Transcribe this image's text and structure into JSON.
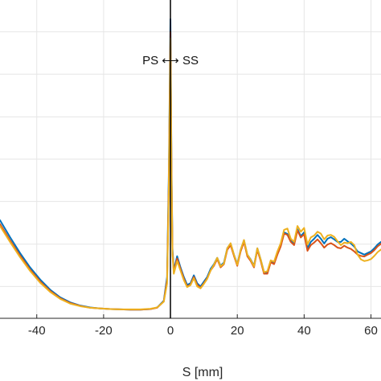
{
  "chart_data": {
    "type": "line",
    "title": "",
    "xlabel": "S [mm]",
    "ylabel": "",
    "xlim": [
      -51,
      63
    ],
    "ylim": [
      0,
      1.0
    ],
    "grid": true,
    "legend": "none",
    "x_ticks": [
      -40,
      -20,
      0,
      20,
      40,
      60
    ],
    "x_tick_labels": [
      "-40",
      "-20",
      "0",
      "20",
      "40",
      "60"
    ],
    "y_grid_values": [
      0.1,
      0.233,
      0.367,
      0.5,
      0.633,
      0.767,
      0.9
    ],
    "annotation": "PS ⟷ SS",
    "vline_x": 0,
    "colors": {
      "blue": "#0072BD",
      "red": "#D95319",
      "yellow": "#EDB120",
      "axis": "#262626",
      "grid": "#e6e6e6",
      "vline": "#000000"
    },
    "series": [
      {
        "color_key": "blue",
        "x": [
          -51,
          -48,
          -45,
          -42,
          -39,
          -36,
          -33,
          -30,
          -27,
          -24,
          -21,
          -18,
          -15,
          -12,
          -9,
          -6,
          -4,
          -2,
          -1,
          -0.5,
          0,
          0.3,
          0.6,
          1,
          2,
          3,
          4,
          5,
          6,
          7,
          8,
          9,
          10,
          11,
          12,
          13,
          14,
          15,
          16,
          17,
          18,
          19,
          20,
          21,
          22,
          23,
          24,
          25,
          26,
          27,
          28,
          29,
          30,
          31,
          32,
          33,
          34,
          35,
          36,
          37,
          38,
          39,
          40,
          41,
          42,
          43,
          44,
          45,
          46,
          47,
          48,
          49,
          50,
          51,
          52,
          53,
          54,
          55,
          56,
          57,
          58,
          59,
          60,
          61,
          62,
          63
        ],
        "y": [
          0.308,
          0.255,
          0.205,
          0.16,
          0.122,
          0.09,
          0.066,
          0.05,
          0.04,
          0.034,
          0.031,
          0.029,
          0.028,
          0.027,
          0.027,
          0.029,
          0.034,
          0.055,
          0.13,
          0.45,
          0.94,
          0.5,
          0.22,
          0.15,
          0.195,
          0.16,
          0.13,
          0.105,
          0.11,
          0.135,
          0.11,
          0.1,
          0.115,
          0.13,
          0.155,
          0.17,
          0.19,
          0.165,
          0.175,
          0.22,
          0.235,
          0.2,
          0.17,
          0.215,
          0.245,
          0.2,
          0.185,
          0.165,
          0.22,
          0.185,
          0.145,
          0.145,
          0.18,
          0.175,
          0.205,
          0.23,
          0.27,
          0.265,
          0.245,
          0.235,
          0.28,
          0.258,
          0.27,
          0.22,
          0.24,
          0.25,
          0.262,
          0.25,
          0.235,
          0.25,
          0.255,
          0.248,
          0.24,
          0.24,
          0.25,
          0.242,
          0.235,
          0.225,
          0.21,
          0.205,
          0.2,
          0.205,
          0.21,
          0.22,
          0.232,
          0.24
        ]
      },
      {
        "color_key": "red",
        "x": [
          -51,
          -48,
          -45,
          -42,
          -39,
          -36,
          -33,
          -30,
          -27,
          -24,
          -21,
          -18,
          -15,
          -12,
          -9,
          -6,
          -4,
          -2,
          -1,
          -0.5,
          0,
          0.3,
          0.6,
          1,
          2,
          3,
          4,
          5,
          6,
          7,
          8,
          9,
          10,
          11,
          12,
          13,
          14,
          15,
          16,
          17,
          18,
          19,
          20,
          21,
          22,
          23,
          24,
          25,
          26,
          27,
          28,
          29,
          30,
          31,
          32,
          33,
          34,
          35,
          36,
          37,
          38,
          39,
          40,
          41,
          42,
          43,
          44,
          45,
          46,
          47,
          48,
          49,
          50,
          51,
          52,
          53,
          54,
          55,
          56,
          57,
          58,
          59,
          60,
          61,
          62,
          63
        ],
        "y": [
          0.296,
          0.245,
          0.197,
          0.153,
          0.116,
          0.086,
          0.063,
          0.048,
          0.039,
          0.033,
          0.031,
          0.029,
          0.028,
          0.027,
          0.027,
          0.029,
          0.033,
          0.053,
          0.12,
          0.42,
          0.9,
          0.48,
          0.21,
          0.145,
          0.188,
          0.155,
          0.125,
          0.1,
          0.106,
          0.13,
          0.105,
          0.096,
          0.11,
          0.126,
          0.15,
          0.165,
          0.186,
          0.16,
          0.17,
          0.215,
          0.23,
          0.196,
          0.165,
          0.21,
          0.24,
          0.195,
          0.18,
          0.16,
          0.215,
          0.18,
          0.14,
          0.14,
          0.176,
          0.17,
          0.2,
          0.226,
          0.266,
          0.262,
          0.24,
          0.23,
          0.276,
          0.254,
          0.264,
          0.212,
          0.23,
          0.238,
          0.248,
          0.236,
          0.222,
          0.232,
          0.236,
          0.23,
          0.222,
          0.22,
          0.228,
          0.222,
          0.218,
          0.21,
          0.2,
          0.196,
          0.194,
          0.2,
          0.205,
          0.214,
          0.226,
          0.234
        ]
      },
      {
        "color_key": "yellow",
        "x": [
          -51,
          -48,
          -45,
          -42,
          -39,
          -36,
          -33,
          -30,
          -27,
          -24,
          -21,
          -18,
          -15,
          -12,
          -9,
          -6,
          -4,
          -2,
          -1,
          -0.5,
          0,
          0.3,
          0.6,
          1,
          2,
          3,
          4,
          5,
          6,
          7,
          8,
          9,
          10,
          11,
          12,
          13,
          14,
          15,
          16,
          17,
          18,
          19,
          20,
          21,
          22,
          23,
          24,
          25,
          26,
          27,
          28,
          29,
          30,
          31,
          32,
          33,
          34,
          35,
          36,
          37,
          38,
          39,
          40,
          41,
          42,
          43,
          44,
          45,
          46,
          47,
          48,
          49,
          50,
          51,
          52,
          53,
          54,
          55,
          56,
          57,
          58,
          59,
          60,
          61,
          62,
          63
        ],
        "y": [
          0.29,
          0.24,
          0.192,
          0.149,
          0.112,
          0.083,
          0.061,
          0.046,
          0.038,
          0.033,
          0.031,
          0.029,
          0.028,
          0.028,
          0.028,
          0.03,
          0.034,
          0.052,
          0.11,
          0.4,
          0.88,
          0.46,
          0.2,
          0.14,
          0.18,
          0.15,
          0.12,
          0.098,
          0.104,
          0.126,
          0.1,
          0.094,
          0.108,
          0.124,
          0.15,
          0.168,
          0.19,
          0.163,
          0.172,
          0.22,
          0.236,
          0.2,
          0.168,
          0.215,
          0.246,
          0.2,
          0.184,
          0.163,
          0.22,
          0.185,
          0.145,
          0.148,
          0.182,
          0.178,
          0.21,
          0.236,
          0.278,
          0.282,
          0.25,
          0.24,
          0.29,
          0.272,
          0.284,
          0.232,
          0.254,
          0.26,
          0.272,
          0.266,
          0.248,
          0.26,
          0.262,
          0.256,
          0.242,
          0.23,
          0.238,
          0.236,
          0.24,
          0.23,
          0.2,
          0.185,
          0.18,
          0.182,
          0.186,
          0.196,
          0.208,
          0.216
        ]
      }
    ]
  }
}
